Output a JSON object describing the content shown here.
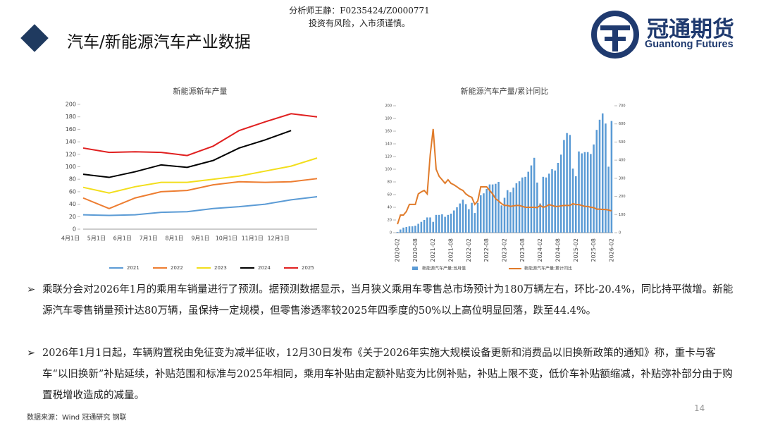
{
  "header": {
    "analyst": "分析师王静：F0235424/Z0000771",
    "risk": "投资有风险，入市须谨慎。",
    "title": "汽车/新能源汽车产业数据",
    "logo_cn": "冠通期货",
    "logo_en": "Guantong Futures"
  },
  "chart_data": [
    {
      "type": "line",
      "title": "新能源新车产量",
      "categories": [
        "4月1日",
        "5月1日",
        "6月1日",
        "7月1日",
        "8月1日",
        "9月1日",
        "10月1日",
        "11月1日",
        "12月1日",
        null
      ],
      "series": [
        {
          "name": "2021",
          "color": "#5b9bd5",
          "values": [
            23,
            22,
            23,
            27,
            28,
            33,
            36,
            40,
            47,
            52
          ]
        },
        {
          "name": "2022",
          "color": "#ed7d31",
          "values": [
            50,
            33,
            50,
            60,
            62,
            71,
            76,
            75,
            76,
            81
          ]
        },
        {
          "name": "2023",
          "color": "#f2de1c",
          "values": [
            67,
            58,
            68,
            75,
            75,
            80,
            85,
            93,
            101,
            114
          ]
        },
        {
          "name": "2024",
          "color": "#000000",
          "values": [
            88,
            83,
            92,
            103,
            99,
            110,
            130,
            143,
            158,
            null
          ]
        },
        {
          "name": "2025",
          "color": "#e02020",
          "values": [
            130,
            123,
            124,
            123,
            118,
            133,
            158,
            172,
            185,
            180
          ]
        }
      ],
      "ylim": [
        0,
        200
      ],
      "yticks": [
        0,
        20,
        40,
        60,
        80,
        100,
        120,
        140,
        160,
        180,
        200
      ],
      "grid": false
    },
    {
      "type": "combo",
      "title": "新能源汽车产量/累计同比",
      "categories": [
        "2020-02",
        null,
        null,
        null,
        null,
        null,
        "2020-08",
        null,
        null,
        null,
        null,
        null,
        "2021-02",
        null,
        null,
        null,
        null,
        null,
        "2021-08",
        null,
        null,
        null,
        null,
        null,
        "2022-02",
        null,
        null,
        null,
        null,
        null,
        "2022-08",
        null,
        null,
        null,
        null,
        null,
        "2023-02",
        null,
        null,
        null,
        null,
        null,
        "2023-08",
        null,
        null,
        null,
        null,
        null,
        "2024-02",
        null,
        null,
        null,
        null,
        null,
        "2024-08",
        null,
        null,
        null,
        null,
        null,
        "2025-02",
        null,
        null,
        null,
        null,
        null,
        "2025-08",
        null,
        null,
        null,
        null,
        null,
        "2026-02"
      ],
      "series": [
        {
          "name": "新能源汽车产量:当月值",
          "type": "bar",
          "color": "#5b9bd5",
          "values": [
            1,
            5,
            8,
            9,
            10,
            10,
            11,
            14,
            17,
            20,
            24,
            24,
            17,
            28,
            28,
            29,
            25,
            28,
            30,
            35,
            40,
            46,
            52,
            45,
            37,
            47,
            31,
            47,
            59,
            62,
            69,
            76,
            76,
            77,
            80,
            43,
            55,
            67,
            64,
            71,
            78,
            81,
            87,
            88,
            96,
            106,
            118,
            79,
            46,
            88,
            87,
            93,
            100,
            98,
            110,
            123,
            146,
            157,
            154,
            101,
            89,
            128,
            125,
            127,
            127,
            124,
            139,
            162,
            178,
            188,
            172,
            104,
            176
          ]
        },
        {
          "name": "新能源汽车产量:累计同比",
          "type": "line",
          "axis": "y2",
          "color": "#e07b2a",
          "values": [
            47,
            97,
            97,
            117,
            156,
            156,
            156,
            214,
            225,
            233,
            214,
            428,
            572,
            350,
            311,
            292,
            272,
            292,
            272,
            264,
            253,
            241,
            233,
            214,
            202,
            195,
            156,
            175,
            253,
            253,
            253,
            233,
            214,
            187,
            175,
            160,
            150,
            150,
            145,
            148,
            150,
            150,
            145,
            140,
            140,
            140,
            140,
            138,
            150,
            140,
            145,
            155,
            150,
            145,
            145,
            148,
            150,
            150,
            150,
            160,
            155,
            155,
            150,
            145,
            145,
            140,
            138,
            130,
            130,
            128,
            128,
            125,
            120
          ]
        }
      ],
      "ylim": [
        0,
        200
      ],
      "yticks": [
        0,
        20,
        40,
        60,
        80,
        100,
        120,
        140,
        160,
        180,
        200
      ],
      "y2lim": [
        0,
        700
      ],
      "y2ticks": [
        0,
        100,
        200,
        300,
        400,
        500,
        600,
        700
      ]
    }
  ],
  "bullets": [
    "乘联分会对2026年1月的乘用车销量进行了预测。据预测数据显示，当月狭义乘用车零售总市场预计为180万辆左右，环比-20.4%，同比持平微增。新能源汽车零售销量预计达80万辆，虽保持一定规模，但零售渗透率较2025年四季度的50%以上高位明显回落，跌至44.4%。",
    "2026年1月1日起，车辆购置税由免征变为减半征收，12月30日发布《关于2026年实施大规模设备更新和消费品以旧换新政策的通知》称，重卡与客车“以旧换新”补贴延续，补贴范围和标准与2025年相同，乘用车补贴由定额补贴变为比例补贴，补贴上限不变，低价车补贴额缩减，补贴弥补部分由于购置税增收造成的减量。"
  ],
  "footer": {
    "source": "数据来源：Wind 冠通研究 钢联",
    "page": "14"
  }
}
